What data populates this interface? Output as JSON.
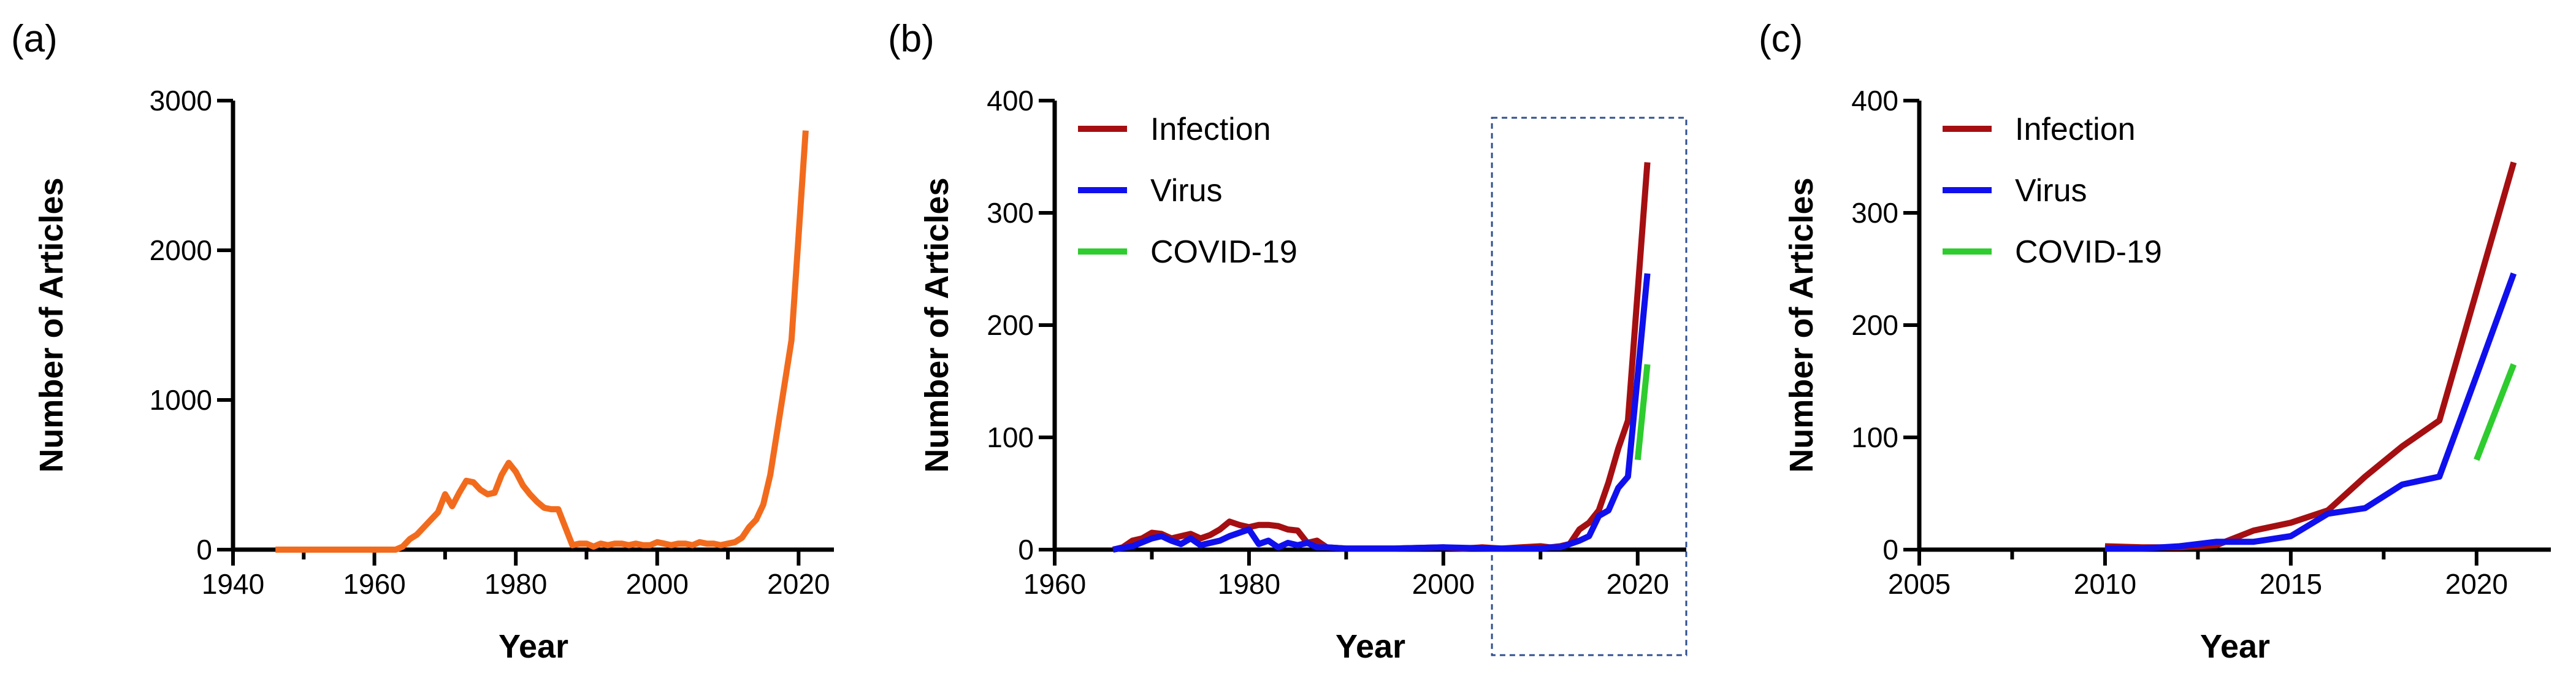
{
  "chart_data": [
    {
      "panel_label": "(a)",
      "type": "line",
      "xlabel": "Year",
      "ylabel": "Number of Articles",
      "xlim": [
        1940,
        2025
      ],
      "ylim": [
        0,
        3000
      ],
      "xticks": [
        1940,
        1960,
        1980,
        2000,
        2020
      ],
      "yticks": [
        0,
        1000,
        2000,
        3000
      ],
      "legend": false,
      "series": [
        {
          "name": "Articles",
          "color": "#f26b1d",
          "x": [
            1946,
            1950,
            1955,
            1960,
            1963,
            1964,
            1965,
            1966,
            1967,
            1968,
            1969,
            1970,
            1971,
            1972,
            1973,
            1974,
            1975,
            1976,
            1977,
            1978,
            1979,
            1980,
            1981,
            1982,
            1983,
            1984,
            1985,
            1986,
            1987,
            1988,
            1989,
            1990,
            1991,
            1992,
            1993,
            1994,
            1995,
            1996,
            1997,
            1998,
            1999,
            2000,
            2001,
            2002,
            2003,
            2004,
            2005,
            2006,
            2007,
            2008,
            2009,
            2010,
            2011,
            2012,
            2013,
            2014,
            2015,
            2016,
            2017,
            2018,
            2019,
            2020,
            2021
          ],
          "y": [
            0,
            0,
            0,
            0,
            0,
            20,
            70,
            100,
            150,
            200,
            250,
            370,
            290,
            380,
            460,
            450,
            400,
            370,
            380,
            500,
            580,
            520,
            430,
            370,
            320,
            280,
            270,
            270,
            150,
            30,
            40,
            40,
            20,
            40,
            30,
            40,
            40,
            30,
            40,
            30,
            30,
            50,
            40,
            30,
            40,
            40,
            30,
            50,
            40,
            40,
            30,
            40,
            50,
            80,
            150,
            200,
            300,
            500,
            800,
            1100,
            1400,
            2100,
            2800
          ]
        }
      ]
    },
    {
      "panel_label": "(b)",
      "type": "line",
      "xlabel": "Year",
      "ylabel": "Number of Articles",
      "xlim": [
        1960,
        2025
      ],
      "ylim": [
        0,
        400
      ],
      "xticks": [
        1960,
        1980,
        2000,
        2020
      ],
      "yticks": [
        0,
        100,
        200,
        300,
        400
      ],
      "legend": true,
      "legend_position": "top-left",
      "highlight_box_years": [
        2005,
        2025
      ],
      "series": [
        {
          "name": "Infection",
          "color": "#a50f12",
          "x": [
            1966,
            1967,
            1968,
            1969,
            1970,
            1971,
            1972,
            1973,
            1974,
            1975,
            1976,
            1977,
            1978,
            1979,
            1980,
            1981,
            1982,
            1983,
            1984,
            1985,
            1986,
            1987,
            1988,
            1990,
            1995,
            2000,
            2002,
            2004,
            2006,
            2008,
            2010,
            2011,
            2012,
            2013,
            2014,
            2015,
            2016,
            2017,
            2018,
            2019,
            2020,
            2021
          ],
          "y": [
            0,
            2,
            8,
            10,
            15,
            14,
            10,
            12,
            14,
            10,
            13,
            18,
            25,
            22,
            20,
            22,
            22,
            21,
            18,
            17,
            6,
            8,
            2,
            1,
            1,
            2,
            1,
            2,
            1,
            2,
            3,
            2,
            3,
            5,
            18,
            24,
            35,
            60,
            90,
            115,
            230,
            345
          ]
        },
        {
          "name": "Virus",
          "color": "#1010ee",
          "x": [
            1966,
            1968,
            1970,
            1971,
            1972,
            1973,
            1974,
            1975,
            1976,
            1977,
            1978,
            1979,
            1980,
            1981,
            1982,
            1983,
            1984,
            1985,
            1986,
            1987,
            1988,
            1990,
            1995,
            2000,
            2005,
            2010,
            2011,
            2012,
            2013,
            2014,
            2015,
            2016,
            2017,
            2018,
            2019,
            2020,
            2021
          ],
          "y": [
            0,
            3,
            10,
            12,
            8,
            5,
            10,
            4,
            6,
            8,
            12,
            15,
            18,
            5,
            8,
            2,
            6,
            4,
            6,
            2,
            2,
            1,
            1,
            2,
            1,
            1,
            2,
            2,
            5,
            8,
            12,
            30,
            35,
            55,
            65,
            155,
            246
          ]
        },
        {
          "name": "COVID-19",
          "color": "#2ecc2e",
          "x": [
            2020,
            2021
          ],
          "y": [
            80,
            165
          ]
        }
      ]
    },
    {
      "panel_label": "(c)",
      "type": "line",
      "xlabel": "Year",
      "ylabel": "Number of Articles",
      "xlim": [
        2005,
        2022
      ],
      "ylim": [
        0,
        400
      ],
      "xticks": [
        2005,
        2010,
        2015,
        2020
      ],
      "yticks": [
        0,
        100,
        200,
        300,
        400
      ],
      "legend": true,
      "legend_position": "top-left",
      "series": [
        {
          "name": "Infection",
          "color": "#a50f12",
          "x": [
            2010,
            2011,
            2012,
            2013,
            2014,
            2015,
            2016,
            2017,
            2018,
            2019,
            2020,
            2021
          ],
          "y": [
            3,
            2,
            2,
            4,
            17,
            24,
            35,
            65,
            92,
            115,
            230,
            345
          ]
        },
        {
          "name": "Virus",
          "color": "#1010ee",
          "x": [
            2010,
            2011,
            2012,
            2013,
            2014,
            2015,
            2016,
            2017,
            2018,
            2019,
            2020,
            2021
          ],
          "y": [
            1,
            1,
            3,
            7,
            7,
            12,
            32,
            37,
            58,
            65,
            155,
            246
          ]
        },
        {
          "name": "COVID-19",
          "color": "#2ecc2e",
          "x": [
            2020,
            2021
          ],
          "y": [
            80,
            165
          ]
        }
      ]
    }
  ]
}
